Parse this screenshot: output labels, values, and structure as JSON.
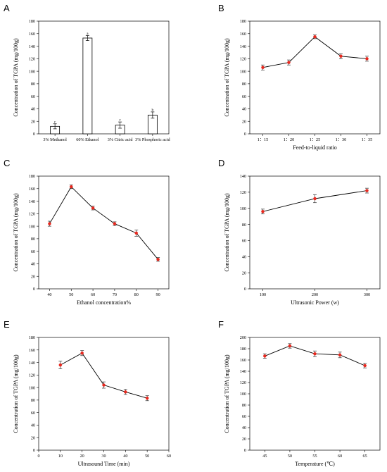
{
  "figure": {
    "chart_data": [
      {
        "panel": "A",
        "type": "bar",
        "categories": [
          "3% Methanol",
          "60% Ethanol",
          "3% Citric acid",
          "3% Phosphoric acid"
        ],
        "values": [
          12,
          153,
          14,
          30
        ],
        "errors": [
          4,
          4,
          5,
          5
        ],
        "letters": [
          "c",
          "a",
          "c",
          "b"
        ],
        "xlabel": "",
        "ylabel": "Concentration of TGPA (mg/100g)",
        "ylim": [
          0,
          180
        ],
        "yticks": [
          0,
          20,
          40,
          60,
          80,
          100,
          120,
          140,
          160,
          180
        ]
      },
      {
        "panel": "B",
        "type": "line",
        "x": [
          "1：15",
          "1：20",
          "1：25",
          "1：30",
          "1：35"
        ],
        "y": [
          106,
          114,
          155,
          124,
          120
        ],
        "errors": [
          4,
          4,
          3,
          4,
          4
        ],
        "xlabel": "Feed-to-liquid ratio",
        "ylabel": "Concentration of TGPA (mg/100g)",
        "ylim": [
          0,
          180
        ],
        "yticks": [
          0,
          20,
          40,
          60,
          80,
          100,
          120,
          140,
          160,
          180
        ]
      },
      {
        "panel": "C",
        "type": "line",
        "x": [
          40,
          50,
          60,
          70,
          80,
          90
        ],
        "y": [
          104,
          163,
          129,
          104,
          89,
          47
        ],
        "errors": [
          4,
          3,
          3,
          3,
          5,
          3
        ],
        "xlabel": "Ethanol concentration%",
        "ylabel": "Concentration of TGPA (mg/100g)",
        "ylim": [
          0,
          180
        ],
        "yticks": [
          0,
          20,
          40,
          60,
          80,
          100,
          120,
          140,
          160,
          180
        ],
        "xlim": [
          35,
          95
        ],
        "xticks": [
          40,
          50,
          60,
          70,
          80,
          90
        ]
      },
      {
        "panel": "D",
        "type": "line",
        "x": [
          100,
          200,
          300
        ],
        "y": [
          96,
          112,
          122
        ],
        "errors": [
          3,
          5,
          3
        ],
        "xlabel": "Ultrasonic Power (w)",
        "ylabel": "Concentration of TGPA (mg/100g)",
        "ylim": [
          0,
          140
        ],
        "yticks": [
          0,
          20,
          40,
          60,
          80,
          100,
          120,
          140
        ],
        "xlim": [
          75,
          325
        ],
        "xticks": [
          100,
          200,
          300
        ]
      },
      {
        "panel": "E",
        "type": "line",
        "x": [
          10,
          20,
          30,
          40,
          50
        ],
        "y": [
          136,
          155,
          104,
          93,
          83
        ],
        "errors": [
          6,
          4,
          5,
          4,
          4
        ],
        "xlabel": "Ultrasound Time (min)",
        "ylabel": "Concentration of TGPA (mg/100g)",
        "ylim": [
          0,
          180
        ],
        "yticks": [
          0,
          20,
          40,
          60,
          80,
          100,
          120,
          140,
          160,
          180
        ],
        "xlim": [
          0,
          60
        ],
        "xticks": [
          0,
          10,
          20,
          30,
          40,
          50,
          60
        ]
      },
      {
        "panel": "F",
        "type": "line",
        "x": [
          45,
          50,
          55,
          60,
          65
        ],
        "y": [
          167,
          185,
          171,
          169,
          150
        ],
        "errors": [
          4,
          4,
          5,
          5,
          4
        ],
        "xlabel": "Temperature (℃)",
        "ylabel": "Concentration of TGPA (mg/100g)",
        "ylim": [
          0,
          200
        ],
        "yticks": [
          0,
          20,
          40,
          60,
          80,
          100,
          120,
          140,
          160,
          180,
          200
        ],
        "xlim": [
          42,
          68
        ],
        "xticks": [
          45,
          50,
          55,
          60,
          65
        ]
      }
    ]
  },
  "colors": {
    "axis": "#000000",
    "line": "#000000",
    "marker": "#e8281e",
    "error_bar": "#333333",
    "bar_fill": "#ffffff"
  }
}
